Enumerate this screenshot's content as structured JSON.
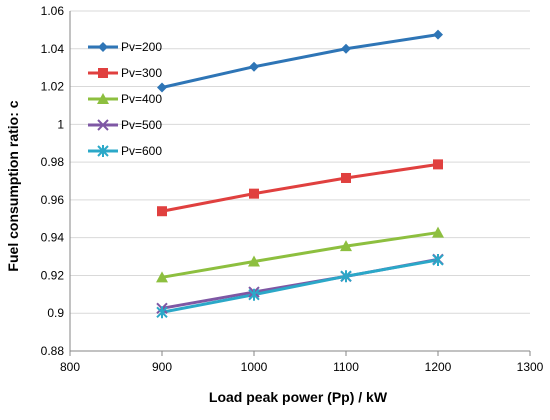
{
  "chart_data": {
    "type": "line",
    "title": "",
    "xlabel": "Load peak power (Pp) / kW",
    "ylabel": "Fuel consumption  ratio: c",
    "xlim": [
      800,
      1300
    ],
    "ylim": [
      0.88,
      1.06
    ],
    "x_ticks": [
      800,
      900,
      1000,
      1100,
      1200,
      1300
    ],
    "x_tick_labels": [
      "800",
      "900",
      "1000",
      "1100",
      "1200",
      "1300"
    ],
    "y_ticks": [
      0.88,
      0.9,
      0.92,
      0.94,
      0.96,
      0.98,
      1.0,
      1.02,
      1.04,
      1.06
    ],
    "y_tick_labels": [
      "0.88",
      "0.9",
      "0.92",
      "0.94",
      "0.96",
      "0.98",
      "1",
      "1.02",
      "1.04",
      "1.06"
    ],
    "grid": "horizontal",
    "legend_position": "top-left",
    "x": [
      900,
      1000,
      1100,
      1200
    ],
    "series": [
      {
        "name": "Pv=200",
        "values": [
          1.0195,
          1.0305,
          1.04,
          1.0475
        ],
        "color": "#2E75B6",
        "marker": "diamond"
      },
      {
        "name": "Pv=300",
        "values": [
          0.954,
          0.9633,
          0.9716,
          0.9788
        ],
        "color": "#E0403F",
        "marker": "square"
      },
      {
        "name": "Pv=400",
        "values": [
          0.919,
          0.9274,
          0.9355,
          0.9427
        ],
        "color": "#8DBF3F",
        "marker": "triangle"
      },
      {
        "name": "Pv=500",
        "values": [
          0.9026,
          0.9112,
          0.9195,
          0.9285
        ],
        "color": "#7E57A4",
        "marker": "x"
      },
      {
        "name": "Pv=600",
        "values": [
          0.9005,
          0.9098,
          0.9196,
          0.9282
        ],
        "color": "#2BA8C8",
        "marker": "star"
      }
    ]
  }
}
